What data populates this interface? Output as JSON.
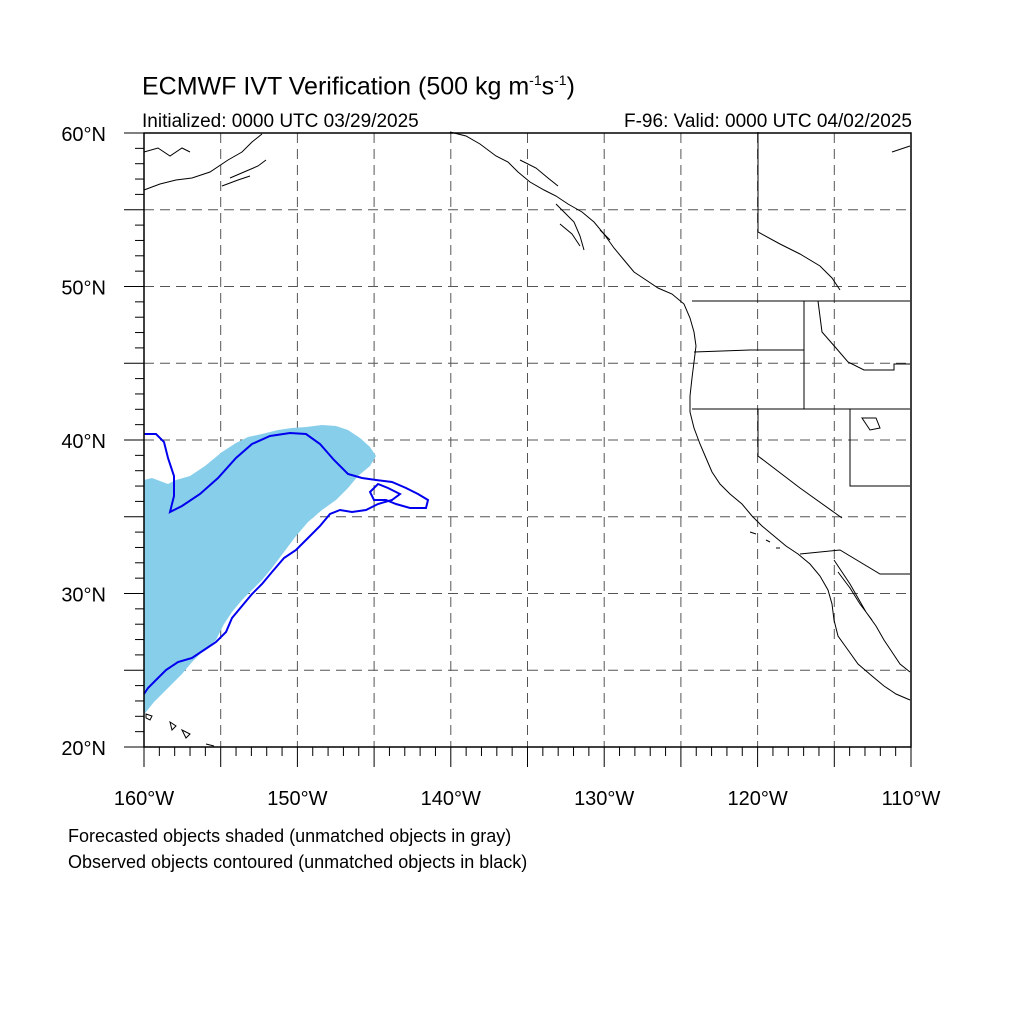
{
  "header": {
    "title_main": "ECMWF IVT Verification (500 kg m",
    "title_sup1": "-1",
    "title_mid": "s",
    "title_sup2": "-1",
    "title_end": ")",
    "initialized": "Initialized: 0000 UTC 03/29/2025",
    "valid": "F-96: Valid: 0000 UTC 04/02/2025"
  },
  "footnotes": {
    "forecast": "Forecasted objects shaded (unmatched objects in gray)",
    "observed": "Observed objects contoured (unmatched objects in black)"
  },
  "colors": {
    "forecast_fill": "#87ceeb",
    "observed_contour": "#0000ee",
    "coastline": "#000000",
    "grid": "#555555"
  },
  "map": {
    "projection": "cylindrical equidistant",
    "lon_range": [
      -160,
      -110
    ],
    "lat_range": [
      20,
      60
    ],
    "grid_spacing_deg": 5,
    "lon_ticks": [
      "160°W",
      "150°W",
      "140°W",
      "130°W",
      "120°W",
      "110°W"
    ],
    "lat_ticks": [
      "20°N",
      "30°N",
      "40°N",
      "50°N",
      "60°N"
    ]
  }
}
